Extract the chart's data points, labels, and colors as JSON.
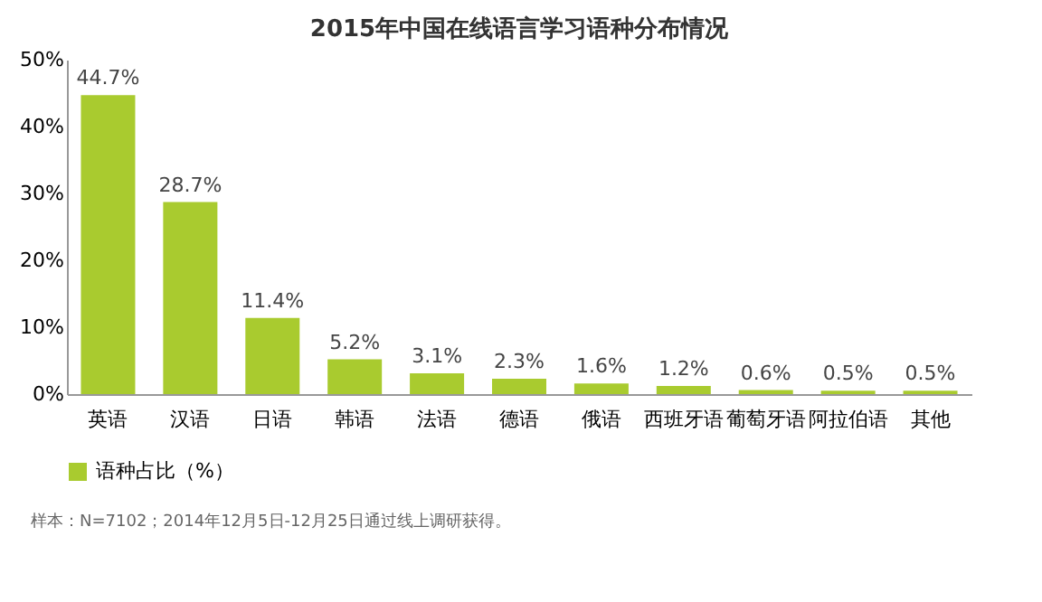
{
  "chart_data": {
    "type": "bar",
    "title": "2015年中国在线语言学习语种分布情况",
    "categories": [
      "英语",
      "汉语",
      "日语",
      "韩语",
      "法语",
      "德语",
      "俄语",
      "西班牙语",
      "葡萄牙语",
      "阿拉伯语",
      "其他"
    ],
    "series": [
      {
        "name": "语种占比（%）",
        "color": "#a9cb2f",
        "values": [
          44.7,
          28.7,
          11.4,
          5.2,
          3.1,
          2.3,
          1.6,
          1.2,
          0.6,
          0.5,
          0.5
        ],
        "value_labels": [
          "44.7%",
          "28.7%",
          "11.4%",
          "5.2%",
          "3.1%",
          "2.3%",
          "1.6%",
          "1.2%",
          "0.6%",
          "0.5%",
          "0.5%"
        ]
      }
    ],
    "ylim": [
      0,
      50
    ],
    "yticks": [
      {
        "value": 0,
        "label": "0%"
      },
      {
        "value": 10,
        "label": "10%"
      },
      {
        "value": 20,
        "label": "20%"
      },
      {
        "value": 30,
        "label": "30%"
      },
      {
        "value": 40,
        "label": "40%"
      },
      {
        "value": 50,
        "label": "50%"
      }
    ],
    "grid": false,
    "legend": "bottom",
    "annotations": [
      "样本：N=7102；2014年12月5日-12月25日通过线上调研获得。"
    ]
  }
}
